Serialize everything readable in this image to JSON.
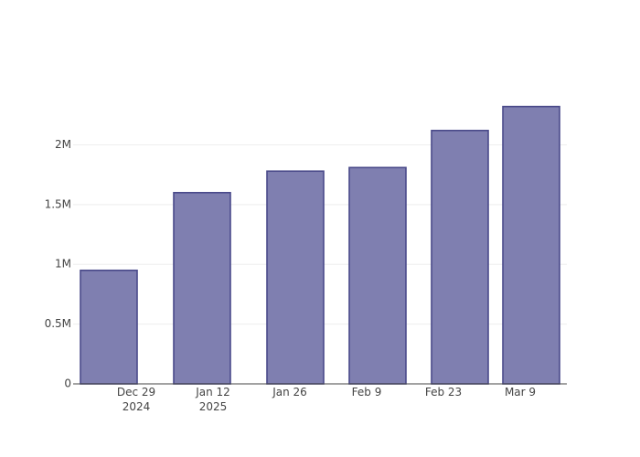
{
  "chart_data": {
    "type": "bar",
    "x": [
      "2024-12-24",
      "2025-01-10",
      "2025-01-27",
      "2025-02-11",
      "2025-02-26",
      "2025-03-11"
    ],
    "values": [
      950000,
      1600000,
      1780000,
      1810000,
      2120000,
      2320000
    ],
    "color": "#7f7fb0",
    "xlim": [
      "2024-12-17T12:00",
      "2025-03-17T12:00"
    ],
    "xticks": [
      {
        "value": "2024-12-29",
        "label": "Dec 29\n2024"
      },
      {
        "value": "2025-01-12",
        "label": "Jan 12\n2025"
      },
      {
        "value": "2025-01-26",
        "label": "Jan 26"
      },
      {
        "value": "2025-02-09",
        "label": "Feb 9"
      },
      {
        "value": "2025-02-23",
        "label": "Feb 23"
      },
      {
        "value": "2025-03-09",
        "label": "Mar 9"
      }
    ],
    "ylim": [
      0,
      2600000
    ],
    "yticks": [
      0,
      {
        "value": 500000,
        "label": "0.5M"
      },
      {
        "value": 1000000,
        "label": "1M"
      },
      {
        "value": 1500000,
        "label": "1.5M"
      },
      {
        "value": 2000000,
        "label": "2M"
      }
    ],
    "grid": true
  }
}
